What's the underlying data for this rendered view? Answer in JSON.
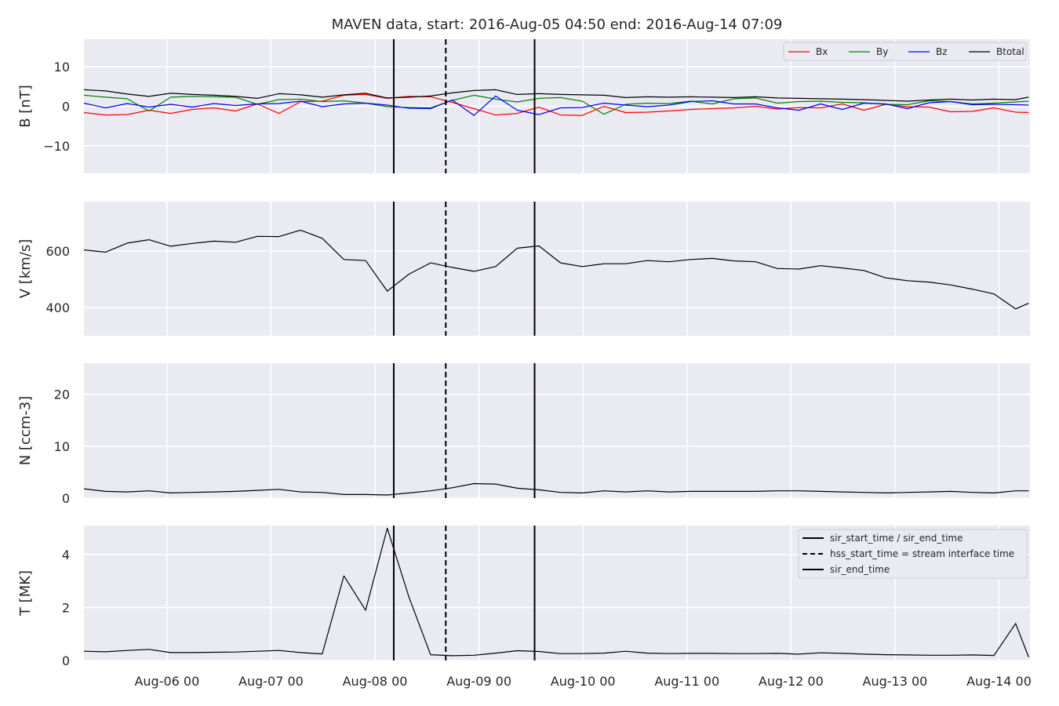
{
  "title": "MAVEN data, start: 2016-Aug-05 04:50  end: 2016-Aug-14 07:09",
  "x_ticks": [
    "Aug-06 00",
    "Aug-07 00",
    "Aug-08 00",
    "Aug-09 00",
    "Aug-10 00",
    "Aug-11 00",
    "Aug-12 00",
    "Aug-13 00",
    "Aug-14 00"
  ],
  "colors": {
    "panel_bg": "#eaeaf2",
    "grid": "#ffffff",
    "text": "#262626",
    "Bx": "#ff0000",
    "By": "#008000",
    "Bz": "#0000ff",
    "Btotal": "#000000",
    "event_lines": "#000000"
  },
  "legend_events": {
    "entries": [
      {
        "label": "sir_start_time / sir_end_time",
        "style": "solid"
      },
      {
        "label": "hss_start_time = stream interface time",
        "style": "dashed"
      },
      {
        "label": "sir_end_time",
        "style": "solid"
      }
    ],
    "placement": "top-right of T panel"
  },
  "chart_data": [
    {
      "type": "line",
      "panel": "B",
      "ylabel": "B [nT]",
      "ylim": [
        -17,
        17
      ],
      "yticks": [
        -10,
        0,
        10
      ],
      "xlim": [
        "2016-08-05 04:50",
        "2016-08-14 07:09"
      ],
      "x_unit": "hours since 2016-08-05 04:50",
      "grid": true,
      "legend": {
        "placement": "top-right",
        "entries": [
          "Bx",
          "By",
          "Bz",
          "Btotal"
        ]
      },
      "x": [
        0,
        5,
        10,
        15,
        20,
        25,
        30,
        35,
        40,
        45,
        50,
        55,
        60,
        65,
        70,
        75,
        80,
        85,
        90,
        95,
        100,
        105,
        110,
        115,
        120,
        125,
        130,
        135,
        140,
        145,
        150,
        155,
        160,
        165,
        170,
        175,
        180,
        185,
        190,
        195,
        200,
        205,
        210,
        215,
        218
      ],
      "series": [
        {
          "name": "Bx",
          "color": "#ff0000",
          "values": [
            -1.6,
            -2.2,
            -2.1,
            -1.0,
            -1.8,
            -0.8,
            -0.4,
            -1.2,
            0.6,
            -1.8,
            1.2,
            1.3,
            2.8,
            3.0,
            2.0,
            2.5,
            2.4,
            1.0,
            -0.6,
            -2.2,
            -1.8,
            -0.2,
            -2.2,
            -2.3,
            0.0,
            -1.6,
            -1.5,
            -1.2,
            -0.8,
            -0.6,
            -0.4,
            0.0,
            -0.7,
            -0.3,
            -0.4,
            0.6,
            -1.0,
            0.5,
            -0.1,
            -0.2,
            -1.4,
            -1.3,
            -0.4,
            -1.5,
            -1.6
          ]
        },
        {
          "name": "By",
          "color": "#008000",
          "values": [
            2.8,
            2.3,
            1.9,
            -1.2,
            2.3,
            2.5,
            2.4,
            2.3,
            0.5,
            1.7,
            1.8,
            1.2,
            1.4,
            0.8,
            -0.1,
            -0.3,
            -0.4,
            1.5,
            2.8,
            1.8,
            1.1,
            2.0,
            2.2,
            1.3,
            -2.0,
            0.5,
            0.8,
            0.7,
            1.3,
            0.6,
            1.9,
            2.1,
            0.8,
            1.2,
            1.3,
            1.0,
            0.9,
            0.5,
            0.4,
            1.4,
            1.2,
            0.6,
            0.8,
            1.1,
            1.3
          ]
        },
        {
          "name": "Bz",
          "color": "#0000ff",
          "values": [
            0.8,
            -0.4,
            0.7,
            -0.2,
            0.5,
            -0.2,
            0.7,
            0.2,
            0.6,
            0.7,
            1.3,
            -0.1,
            0.6,
            0.8,
            0.3,
            -0.5,
            -0.6,
            1.6,
            -2.3,
            2.6,
            -1.0,
            -2.1,
            -0.4,
            -0.3,
            0.8,
            0.3,
            -0.1,
            0.3,
            1.2,
            1.4,
            0.6,
            0.6,
            -0.4,
            -1.0,
            0.6,
            -0.8,
            0.8,
            0.6,
            -0.6,
            0.9,
            1.2,
            0.4,
            0.5,
            0.4,
            0.3
          ]
        },
        {
          "name": "Btotal",
          "color": "#000000",
          "values": [
            4.2,
            3.9,
            3.1,
            2.5,
            3.3,
            3.0,
            2.8,
            2.5,
            2.0,
            3.2,
            2.9,
            2.3,
            2.9,
            3.3,
            2.1,
            2.3,
            2.6,
            3.4,
            4.0,
            4.2,
            3.0,
            3.2,
            3.0,
            2.9,
            2.8,
            2.2,
            2.4,
            2.3,
            2.4,
            2.3,
            2.2,
            2.4,
            2.1,
            2.0,
            1.9,
            1.8,
            1.7,
            1.5,
            1.3,
            1.6,
            1.8,
            1.6,
            1.8,
            1.7,
            2.3
          ]
        }
      ]
    },
    {
      "type": "line",
      "panel": "V",
      "ylabel": "V [km/s]",
      "ylim": [
        300,
        775
      ],
      "yticks": [
        400,
        600
      ],
      "grid": true,
      "x": [
        0,
        5,
        10,
        15,
        20,
        25,
        30,
        35,
        40,
        45,
        50,
        55,
        60,
        65,
        70,
        75,
        80,
        85,
        90,
        95,
        100,
        105,
        110,
        115,
        120,
        125,
        130,
        135,
        140,
        145,
        150,
        155,
        160,
        165,
        170,
        175,
        180,
        185,
        190,
        195,
        200,
        205,
        210,
        215,
        218
      ],
      "series": [
        {
          "name": "",
          "color": "#000000",
          "values": [
            604,
            596,
            628,
            640,
            617,
            627,
            635,
            631,
            652,
            651,
            674,
            645,
            570,
            566,
            458,
            518,
            558,
            542,
            528,
            545,
            610,
            618,
            558,
            545,
            555,
            555,
            566,
            562,
            570,
            574,
            565,
            562,
            538,
            536,
            548,
            540,
            531,
            505,
            495,
            490,
            480,
            465,
            448,
            395,
            415
          ]
        }
      ]
    },
    {
      "type": "line",
      "panel": "N",
      "ylabel": "N [ccm-3]",
      "ylim": [
        0,
        26
      ],
      "yticks": [
        0,
        10,
        20
      ],
      "grid": true,
      "x": [
        0,
        5,
        10,
        15,
        20,
        25,
        30,
        35,
        40,
        45,
        50,
        55,
        60,
        65,
        70,
        75,
        80,
        85,
        90,
        95,
        100,
        105,
        110,
        115,
        120,
        125,
        130,
        135,
        140,
        145,
        150,
        155,
        160,
        165,
        170,
        175,
        180,
        185,
        190,
        195,
        200,
        205,
        210,
        215,
        218
      ],
      "series": [
        {
          "name": "",
          "color": "#000000",
          "values": [
            1.8,
            1.3,
            1.2,
            1.4,
            1.0,
            1.1,
            1.2,
            1.3,
            1.5,
            1.7,
            1.2,
            1.1,
            0.7,
            0.7,
            0.6,
            1.0,
            1.4,
            2.0,
            2.8,
            2.7,
            1.9,
            1.6,
            1.1,
            1.0,
            1.4,
            1.2,
            1.4,
            1.2,
            1.3,
            1.3,
            1.3,
            1.3,
            1.4,
            1.4,
            1.3,
            1.2,
            1.1,
            1.0,
            1.1,
            1.2,
            1.3,
            1.1,
            1.0,
            1.4,
            1.4
          ]
        }
      ]
    },
    {
      "type": "line",
      "panel": "T",
      "ylabel": "T [MK]",
      "ylim": [
        0,
        5.1
      ],
      "yticks": [
        0,
        2,
        4
      ],
      "grid": true,
      "legend": {
        "placement": "top-right"
      },
      "x": [
        0,
        5,
        10,
        15,
        20,
        25,
        30,
        35,
        40,
        45,
        50,
        55,
        60,
        65,
        70,
        75,
        80,
        85,
        90,
        95,
        100,
        105,
        110,
        115,
        120,
        125,
        130,
        135,
        140,
        145,
        150,
        155,
        160,
        165,
        170,
        175,
        180,
        185,
        190,
        195,
        200,
        205,
        210,
        215,
        218
      ],
      "series": [
        {
          "name": "",
          "color": "#000000",
          "values": [
            0.35,
            0.33,
            0.38,
            0.42,
            0.3,
            0.3,
            0.31,
            0.32,
            0.35,
            0.38,
            0.3,
            0.25,
            3.2,
            1.9,
            5.0,
            2.4,
            0.22,
            0.18,
            0.2,
            0.28,
            0.37,
            0.34,
            0.26,
            0.26,
            0.28,
            0.35,
            0.28,
            0.26,
            0.27,
            0.27,
            0.26,
            0.26,
            0.27,
            0.24,
            0.29,
            0.27,
            0.24,
            0.22,
            0.21,
            0.2,
            0.2,
            0.21,
            0.19,
            1.4,
            0.13
          ]
        }
      ]
    }
  ],
  "event_lines": [
    {
      "hour": 71.5,
      "style": "solid"
    },
    {
      "hour": 83.5,
      "style": "dashed"
    },
    {
      "hour": 104.0,
      "style": "solid"
    }
  ]
}
